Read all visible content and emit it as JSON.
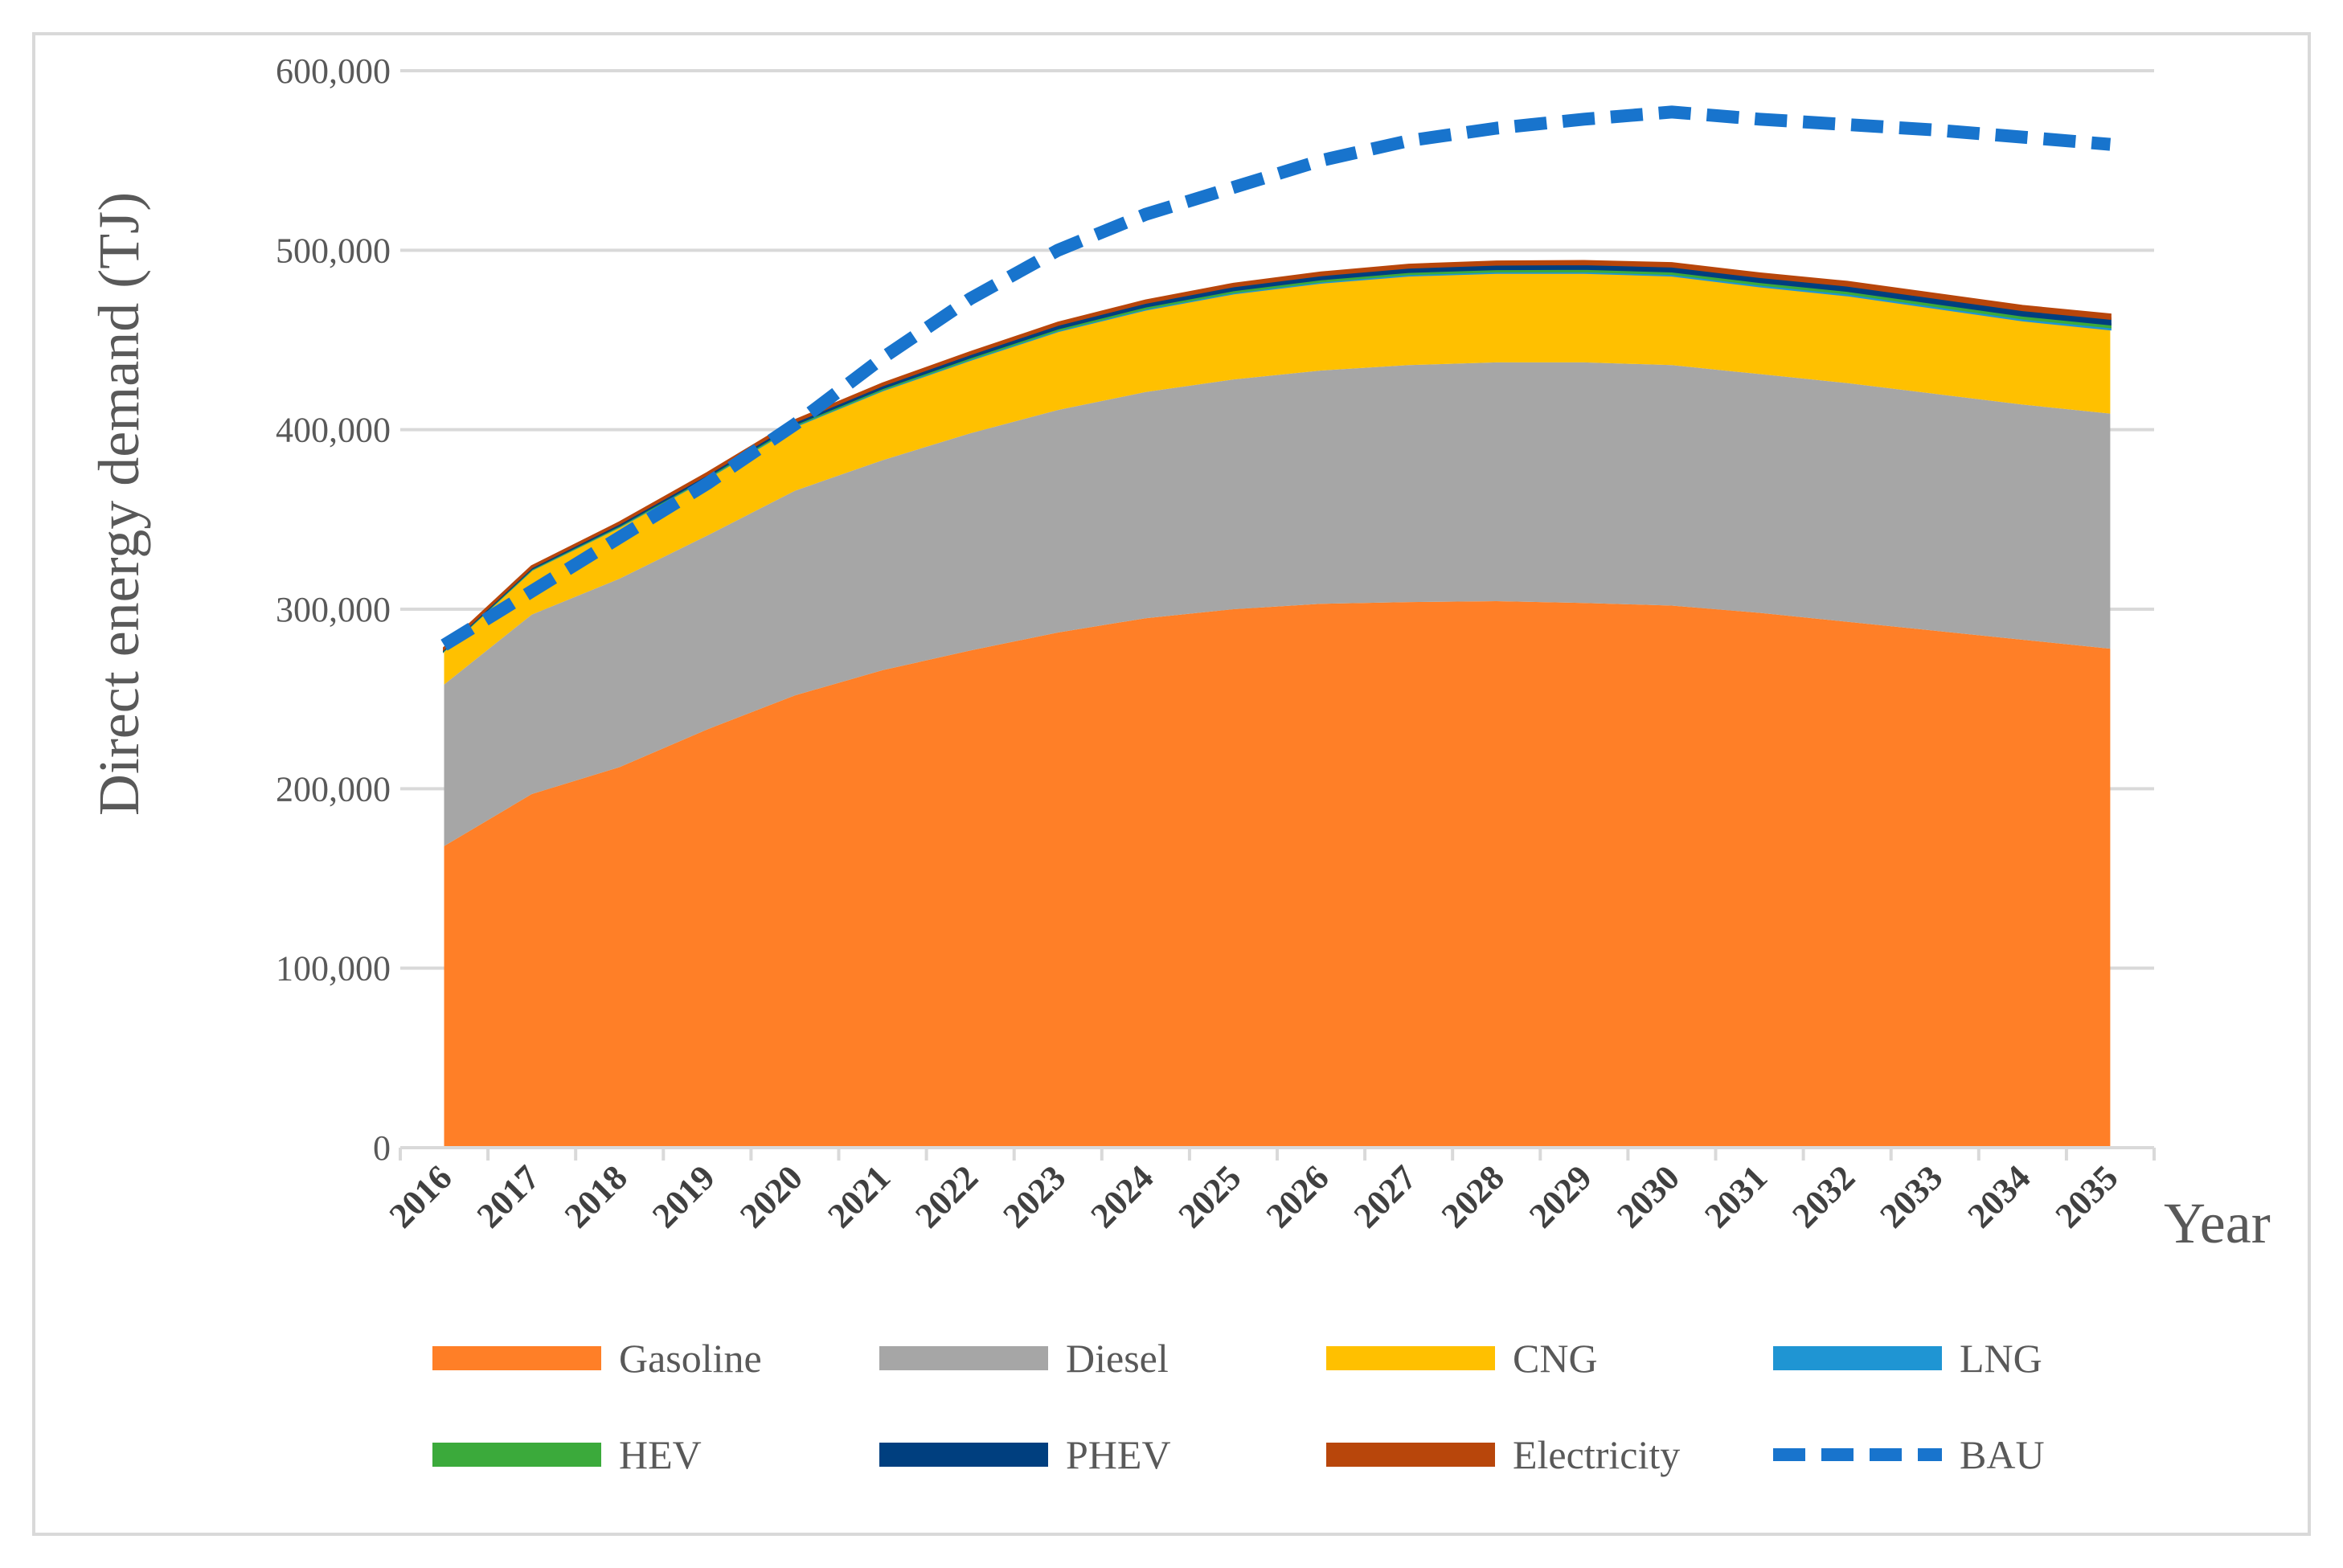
{
  "chart_data": {
    "type": "area",
    "stacked": true,
    "title": "",
    "xlabel": "Year",
    "ylabel": "Direct energy demand (TJ)",
    "ylim": [
      0,
      600000
    ],
    "ytick_values": [
      0,
      100000,
      200000,
      300000,
      400000,
      500000,
      600000
    ],
    "ytick_labels": [
      "0",
      "100,000",
      "200,000",
      "300,000",
      "400,000",
      "500,000",
      "600,000"
    ],
    "grid": true,
    "legend_position": "bottom",
    "categories": [
      "2016",
      "2017",
      "2018",
      "2019",
      "2020",
      "2021",
      "2022",
      "2023",
      "2024",
      "2025",
      "2026",
      "2027",
      "2028",
      "2029",
      "2030",
      "2031",
      "2032",
      "2033",
      "2034",
      "2035"
    ],
    "series": [
      {
        "name": "Gasoline",
        "color": "#FF7F27",
        "values": [
          168000,
          197000,
          212000,
          233000,
          252000,
          266000,
          277000,
          287000,
          295000,
          300000,
          303000,
          304000,
          304500,
          303500,
          302000,
          298000,
          293000,
          288000,
          283000,
          278000
        ]
      },
      {
        "name": "Diesel",
        "color": "#A6A6A6",
        "values": [
          90000,
          100000,
          105000,
          108000,
          114000,
          117000,
          121000,
          124000,
          126000,
          128000,
          130000,
          132000,
          133000,
          134000,
          134000,
          133000,
          133000,
          132000,
          131000,
          131000
        ]
      },
      {
        "name": "CNG",
        "color": "#FFC000",
        "values": [
          19000,
          25000,
          29000,
          32000,
          36000,
          39000,
          41000,
          44000,
          46000,
          48000,
          49000,
          50000,
          50000,
          50000,
          50000,
          49000,
          49000,
          48000,
          47000,
          47000
        ]
      },
      {
        "name": "LNG",
        "color": "#1F95D3",
        "values": [
          200,
          250,
          300,
          350,
          400,
          450,
          500,
          550,
          600,
          650,
          700,
          750,
          800,
          850,
          900,
          950,
          1000,
          1050,
          1100,
          1150
        ]
      },
      {
        "name": "HEV",
        "color": "#3BAA3B",
        "values": [
          300,
          400,
          500,
          600,
          700,
          800,
          900,
          1000,
          1100,
          1150,
          1200,
          1250,
          1300,
          1350,
          1400,
          1450,
          1500,
          1550,
          1600,
          1650
        ]
      },
      {
        "name": "PHEV",
        "color": "#003F7F",
        "values": [
          600,
          800,
          1000,
          1200,
          1400,
          1600,
          1800,
          2000,
          2100,
          2200,
          2300,
          2400,
          2500,
          2600,
          2700,
          2800,
          2900,
          3000,
          3050,
          3100
        ]
      },
      {
        "name": "Electricity",
        "color": "#B8460B",
        "values": [
          300,
          400,
          500,
          600,
          700,
          800,
          900,
          1000,
          1100,
          1200,
          1300,
          1400,
          1500,
          1600,
          1700,
          1800,
          1900,
          2000,
          2100,
          2200
        ]
      }
    ],
    "line_series": [
      {
        "name": "BAU",
        "color": "#1874CD",
        "style": "dashed",
        "values": [
          280000,
          310000,
          340000,
          370000,
          403000,
          440000,
          473000,
          500000,
          520000,
          535000,
          550000,
          561000,
          568000,
          573000,
          577000,
          573000,
          570000,
          567000,
          563000,
          559000
        ]
      }
    ],
    "legend": [
      "Gasoline",
      "Diesel",
      "CNG",
      "LNG",
      "HEV",
      "PHEV",
      "Electricity",
      "BAU"
    ]
  }
}
